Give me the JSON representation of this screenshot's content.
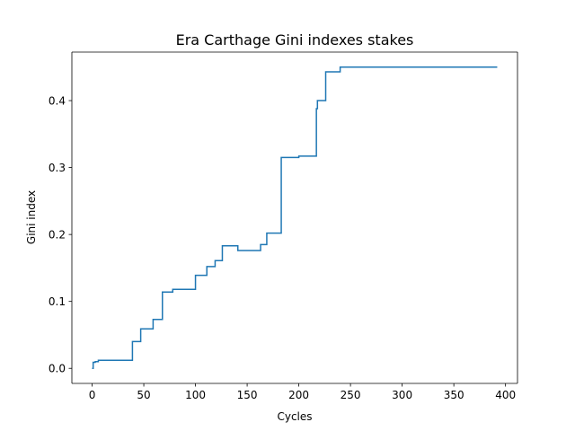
{
  "chart_data": {
    "type": "line",
    "title": "Era Carthage Gini indexes stakes",
    "xlabel": "Cycles",
    "ylabel": "Gini index",
    "xlim": [
      -19.6,
      411.6
    ],
    "ylim": [
      -0.0225,
      0.4725
    ],
    "xticks": [
      0,
      50,
      100,
      150,
      200,
      250,
      300,
      350,
      400
    ],
    "xtick_labels": [
      "0",
      "50",
      "100",
      "150",
      "200",
      "250",
      "300",
      "350",
      "400"
    ],
    "yticks": [
      0.0,
      0.1,
      0.2,
      0.3,
      0.4
    ],
    "ytick_labels": [
      "0.0",
      "0.1",
      "0.2",
      "0.3",
      "0.4"
    ],
    "grid": false,
    "line_color": "#1f77b4",
    "series": [
      {
        "step": "post",
        "x": [
          0,
          1,
          3,
          6,
          38,
          39,
          47,
          59,
          68,
          78,
          100,
          111,
          119,
          120,
          126,
          141,
          163,
          169,
          182,
          183,
          200,
          201,
          216,
          217,
          218,
          222,
          226,
          238,
          240,
          392
        ],
        "y": [
          0.0,
          0.009,
          0.01,
          0.012,
          0.012,
          0.04,
          0.059,
          0.073,
          0.114,
          0.118,
          0.139,
          0.152,
          0.161,
          0.161,
          0.183,
          0.176,
          0.185,
          0.202,
          0.202,
          0.315,
          0.317,
          0.317,
          0.317,
          0.388,
          0.4,
          0.4,
          0.443,
          0.443,
          0.45,
          0.45
        ]
      }
    ]
  }
}
